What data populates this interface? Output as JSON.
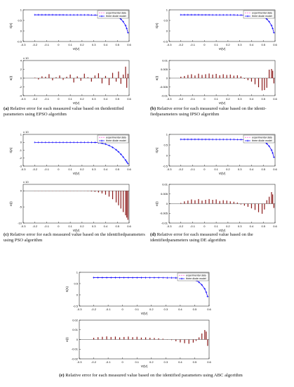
{
  "shared": {
    "x_ticks": [
      -0.3,
      -0.2,
      -0.1,
      0,
      0.1,
      0.2,
      0.3,
      0.4,
      0.5,
      0.6
    ],
    "x_tick_labels": [
      "-0.3",
      "-0.2",
      "-0.1",
      "0",
      "0.1",
      "0.2",
      "0.3",
      "0.4",
      "0.5",
      "0.6"
    ],
    "xlabel": "Vt(V)",
    "legend": [
      "experimental data",
      "three diode model"
    ],
    "colors": {
      "experimental": "#ff33cc",
      "model": "#0000ff",
      "error_bar": "#8b1a1a",
      "axis": "#000000"
    },
    "iv_curve": {
      "V": [
        -0.2,
        -0.17,
        -0.14,
        -0.11,
        -0.08,
        -0.05,
        -0.02,
        0.01,
        0.04,
        0.07,
        0.1,
        0.13,
        0.16,
        0.19,
        0.22,
        0.25,
        0.28,
        0.31,
        0.34,
        0.37,
        0.4,
        0.43,
        0.46,
        0.49,
        0.51,
        0.53,
        0.55,
        0.57,
        0.58,
        0.59
      ],
      "I": [
        0.764,
        0.764,
        0.764,
        0.763,
        0.763,
        0.763,
        0.762,
        0.762,
        0.762,
        0.761,
        0.761,
        0.761,
        0.76,
        0.76,
        0.759,
        0.759,
        0.758,
        0.757,
        0.755,
        0.752,
        0.746,
        0.735,
        0.716,
        0.68,
        0.64,
        0.56,
        0.44,
        0.26,
        0.12,
        -0.08
      ]
    }
  },
  "captions": [
    {
      "letter": "(a)",
      "text": "Relative error for each measured value based on theidentified parameters using EPSO algorithm"
    },
    {
      "letter": "(b)",
      "text": "Relative error for each measured value based on the identi-fiedparameters using IPSO algorithm"
    },
    {
      "letter": "(c)",
      "text": "Relative error for each measured value based on the identifiedparameters using PSO algorithm"
    },
    {
      "letter": "(d)",
      "text": "Relative error for each measured value based on the identifiedparameters using DE algorithm"
    },
    {
      "letter": "(e)",
      "text": "Relative error for each measured value based on the identified parameters using ABC algorithm"
    }
  ],
  "chart_data": [
    {
      "id": "a-iv",
      "type": "line",
      "xlabel": "Vt(V)",
      "ylabel": "It(A)",
      "xlim": [
        -0.3,
        0.6
      ],
      "ylim": [
        -0.5,
        1
      ],
      "y_ticks": [
        -0.5,
        0,
        0.5,
        1
      ],
      "y_tick_labels": [
        "-0.5",
        "0",
        "0.5",
        "1"
      ],
      "series": [
        {
          "name": "experimental data"
        },
        {
          "name": "three diode model"
        }
      ]
    },
    {
      "id": "a-err",
      "type": "bar",
      "xlabel": "Vt(V)",
      "ylabel": "e(I)",
      "exponent": "x 10",
      "xlim": [
        -0.3,
        0.6
      ],
      "ylim": [
        -4,
        4
      ],
      "y_ticks": [
        -4,
        -2,
        0,
        2,
        4
      ],
      "y_tick_labels": [
        "-4",
        "-2",
        "0",
        "2",
        "4"
      ],
      "x": [
        -0.2,
        -0.17,
        -0.14,
        -0.11,
        -0.08,
        -0.05,
        -0.02,
        0.01,
        0.04,
        0.07,
        0.1,
        0.13,
        0.16,
        0.19,
        0.22,
        0.25,
        0.28,
        0.31,
        0.34,
        0.37,
        0.4,
        0.43,
        0.46,
        0.49,
        0.51,
        0.53,
        0.55,
        0.57,
        0.58,
        0.59
      ],
      "values": [
        0.1,
        -0.3,
        0.4,
        0.3,
        0.9,
        -0.5,
        0.2,
        0.6,
        -0.4,
        0.3,
        0.8,
        -1.0,
        0.4,
        -0.6,
        1.0,
        0.2,
        -0.8,
        0.6,
        1.1,
        -1.2,
        0.5,
        -1.6,
        1.2,
        -0.8,
        1.5,
        -1.3,
        0.8,
        2.6,
        -2.2,
        1.0
      ]
    },
    {
      "id": "b-iv",
      "type": "line",
      "xlabel": "Vt(V)",
      "ylabel": "It(A)",
      "xlim": [
        -0.3,
        0.6
      ],
      "ylim": [
        -0.5,
        1
      ],
      "y_ticks": [
        -0.5,
        0,
        0.5,
        1
      ],
      "y_tick_labels": [
        "-0.5",
        "0",
        "0.5",
        "1"
      ],
      "series": [
        {
          "name": "experimental data"
        },
        {
          "name": "three diode model"
        }
      ]
    },
    {
      "id": "b-err",
      "type": "bar",
      "xlabel": "Vt(V)",
      "ylabel": "e(I)",
      "xlim": [
        -0.3,
        0.6
      ],
      "ylim": [
        -0.01,
        0.01
      ],
      "y_ticks": [
        -0.01,
        -0.005,
        0,
        0.005,
        0.01
      ],
      "y_tick_labels": [
        "-0.01",
        "-0.005",
        "0",
        "0.005",
        "0.01"
      ],
      "x": [
        -0.2,
        -0.17,
        -0.14,
        -0.11,
        -0.08,
        -0.05,
        -0.02,
        0.01,
        0.04,
        0.07,
        0.1,
        0.13,
        0.16,
        0.19,
        0.22,
        0.25,
        0.28,
        0.31,
        0.34,
        0.37,
        0.4,
        0.43,
        0.46,
        0.49,
        0.51,
        0.53,
        0.55,
        0.57,
        0.58,
        0.59
      ],
      "values": [
        0.0008,
        0.0012,
        0.0018,
        0.0022,
        0.0015,
        0.0025,
        0.0018,
        0.0022,
        0.0026,
        0.002,
        0.0024,
        0.0016,
        0.0022,
        0.0018,
        0.002,
        0.0014,
        0.0016,
        0.001,
        -0.0004,
        -0.0012,
        -0.002,
        -0.0035,
        -0.0052,
        -0.007,
        -0.0068,
        -0.0055,
        0.0048,
        0.0052,
        0.0042,
        -0.003
      ]
    },
    {
      "id": "c-iv",
      "type": "line",
      "xlabel": "Vt(V)",
      "ylabel": "It(A)",
      "exponent": "x 10",
      "xlim": [
        -0.3,
        0.6
      ],
      "ylim": [
        -3,
        1
      ],
      "y_ticks": [
        -3,
        -2,
        -1,
        0,
        1
      ],
      "y_tick_labels": [
        "-3",
        "-2",
        "-1",
        "0",
        "1"
      ],
      "series": [
        {
          "name": "experimental data"
        },
        {
          "name": "three diode model"
        }
      ]
    },
    {
      "id": "c-err",
      "type": "bar",
      "xlabel": "Vt(V)",
      "ylabel": "e(I)",
      "exponent": "x 10",
      "xlim": [
        -0.3,
        0.6
      ],
      "ylim": [
        -10,
        2
      ],
      "y_ticks": [
        -10,
        -5,
        0
      ],
      "y_tick_labels": [
        "-10",
        "-5",
        "0"
      ],
      "x": [
        -0.2,
        -0.17,
        -0.14,
        -0.11,
        -0.08,
        -0.05,
        -0.02,
        0.01,
        0.04,
        0.07,
        0.1,
        0.13,
        0.16,
        0.19,
        0.22,
        0.25,
        0.28,
        0.31,
        0.34,
        0.37,
        0.4,
        0.43,
        0.46,
        0.49,
        0.51,
        0.53,
        0.55,
        0.57,
        0.58,
        0.59
      ],
      "values": [
        0,
        0,
        0,
        0,
        0,
        0,
        0,
        0,
        0,
        0,
        0,
        0,
        0,
        0,
        0,
        -0.1,
        -0.2,
        -0.3,
        -0.5,
        -0.8,
        -1.2,
        -1.8,
        -2.6,
        -3.6,
        -4.5,
        -5.5,
        -6.6,
        -7.6,
        -8.3,
        -9.0
      ]
    },
    {
      "id": "d-iv",
      "type": "line",
      "xlabel": "Vt(V)",
      "ylabel": "It(A)",
      "xlim": [
        -0.3,
        0.6
      ],
      "ylim": [
        -0.5,
        1
      ],
      "y_ticks": [
        -0.5,
        0,
        0.5,
        1
      ],
      "y_tick_labels": [
        "-0.5",
        "0",
        "0.5",
        "1"
      ],
      "series": [
        {
          "name": "experimental data"
        },
        {
          "name": "three diode model"
        }
      ]
    },
    {
      "id": "d-err",
      "type": "bar",
      "xlabel": "Vt(V)",
      "ylabel": "e(I)",
      "xlim": [
        -0.3,
        0.6
      ],
      "ylim": [
        -0.01,
        0.01
      ],
      "y_ticks": [
        -0.01,
        -0.005,
        0,
        0.005,
        0.01
      ],
      "y_tick_labels": [
        "-0.01",
        "-0.005",
        "0",
        "0.005",
        "0.01"
      ],
      "x": [
        -0.2,
        -0.17,
        -0.14,
        -0.11,
        -0.08,
        -0.05,
        -0.02,
        0.01,
        0.04,
        0.07,
        0.1,
        0.13,
        0.16,
        0.19,
        0.22,
        0.25,
        0.28,
        0.31,
        0.34,
        0.37,
        0.4,
        0.43,
        0.46,
        0.49,
        0.51,
        0.53,
        0.55,
        0.57,
        0.58,
        0.59
      ],
      "values": [
        0.0004,
        0.0012,
        0.0016,
        0.0022,
        0.0018,
        0.0024,
        0.0016,
        0.002,
        0.0024,
        0.002,
        0.0022,
        0.0014,
        0.0018,
        0.0016,
        0.0012,
        0.001,
        0.0006,
        -0.0004,
        -0.001,
        -0.0016,
        -0.0024,
        -0.0032,
        -0.0044,
        -0.0052,
        -0.003,
        0.0018,
        0.0036,
        0.006,
        0.0048,
        -0.0022
      ]
    },
    {
      "id": "e-iv",
      "type": "line",
      "xlabel": "Vt(V)",
      "ylabel": "It(A)",
      "xlim": [
        -0.3,
        0.6
      ],
      "ylim": [
        -0.5,
        1
      ],
      "y_ticks": [
        -0.5,
        0,
        0.5,
        1
      ],
      "y_tick_labels": [
        "-0.5",
        "0",
        "0.5",
        "1"
      ],
      "series": [
        {
          "name": "experimental data"
        },
        {
          "name": "three diode model"
        }
      ]
    },
    {
      "id": "e-err",
      "type": "bar",
      "xlabel": "Vt(V)",
      "ylabel": "e(I)",
      "xlim": [
        -0.3,
        0.6
      ],
      "ylim": [
        -0.02,
        0.02
      ],
      "y_ticks": [
        -0.02,
        -0.01,
        0,
        0.01,
        0.02
      ],
      "y_tick_labels": [
        "-0.02",
        "-0.01",
        "0",
        "0.01",
        "0.02"
      ],
      "x": [
        -0.2,
        -0.17,
        -0.14,
        -0.11,
        -0.08,
        -0.05,
        -0.02,
        0.01,
        0.04,
        0.07,
        0.1,
        0.13,
        0.16,
        0.19,
        0.22,
        0.25,
        0.28,
        0.31,
        0.34,
        0.37,
        0.4,
        0.43,
        0.46,
        0.49,
        0.51,
        0.53,
        0.55,
        0.57,
        0.58,
        0.59
      ],
      "values": [
        0.0018,
        0.0024,
        0.0028,
        0.0032,
        0.0026,
        0.003,
        0.0022,
        0.0026,
        0.003,
        0.0024,
        0.0028,
        0.002,
        0.0022,
        0.0018,
        0.0016,
        0.0012,
        0.0008,
        0.0002,
        -0.0006,
        -0.0018,
        -0.003,
        -0.0038,
        -0.0044,
        -0.0032,
        -0.0014,
        0.0022,
        0.0062,
        0.0098,
        0.0082,
        -0.0066
      ]
    }
  ]
}
